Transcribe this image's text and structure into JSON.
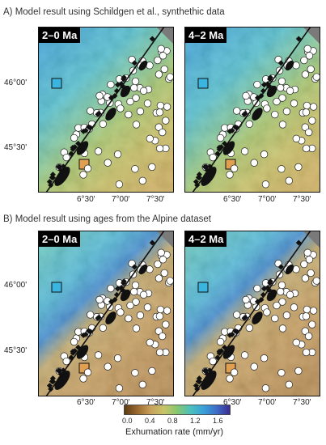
{
  "sections": [
    {
      "title": "A) Model result using Schildgen et al., synthethic data",
      "panels": [
        {
          "label": "2–0 Ma",
          "scenario": "synthetic"
        },
        {
          "label": "4–2 Ma",
          "scenario": "synthetic"
        }
      ]
    },
    {
      "title": "B) Model result using ages from the Alpine dataset",
      "panels": [
        {
          "label": "2–0 Ma",
          "scenario": "alpine"
        },
        {
          "label": "4–2 Ma",
          "scenario": "alpine"
        }
      ]
    }
  ],
  "axes": {
    "lat_labels": [
      "46°00'",
      "45°30'"
    ],
    "lon_labels": [
      "6°30'",
      "7°00'",
      "7°30'"
    ]
  },
  "colorbar": {
    "ticks": [
      "0.0",
      "0.4",
      "0.8",
      "1.2",
      "1.6"
    ],
    "label": "Exhumation rate (mm/yr)",
    "colors": [
      "#5a3a14",
      "#9a6a2e",
      "#c8a05a",
      "#c9c46a",
      "#86c66e",
      "#4cc0bc",
      "#3aa0d8",
      "#3d6cc8",
      "#3a2a8c"
    ]
  },
  "markers": {
    "cyan_square": "#3cb4e0",
    "orange_square": "#e0a050"
  }
}
